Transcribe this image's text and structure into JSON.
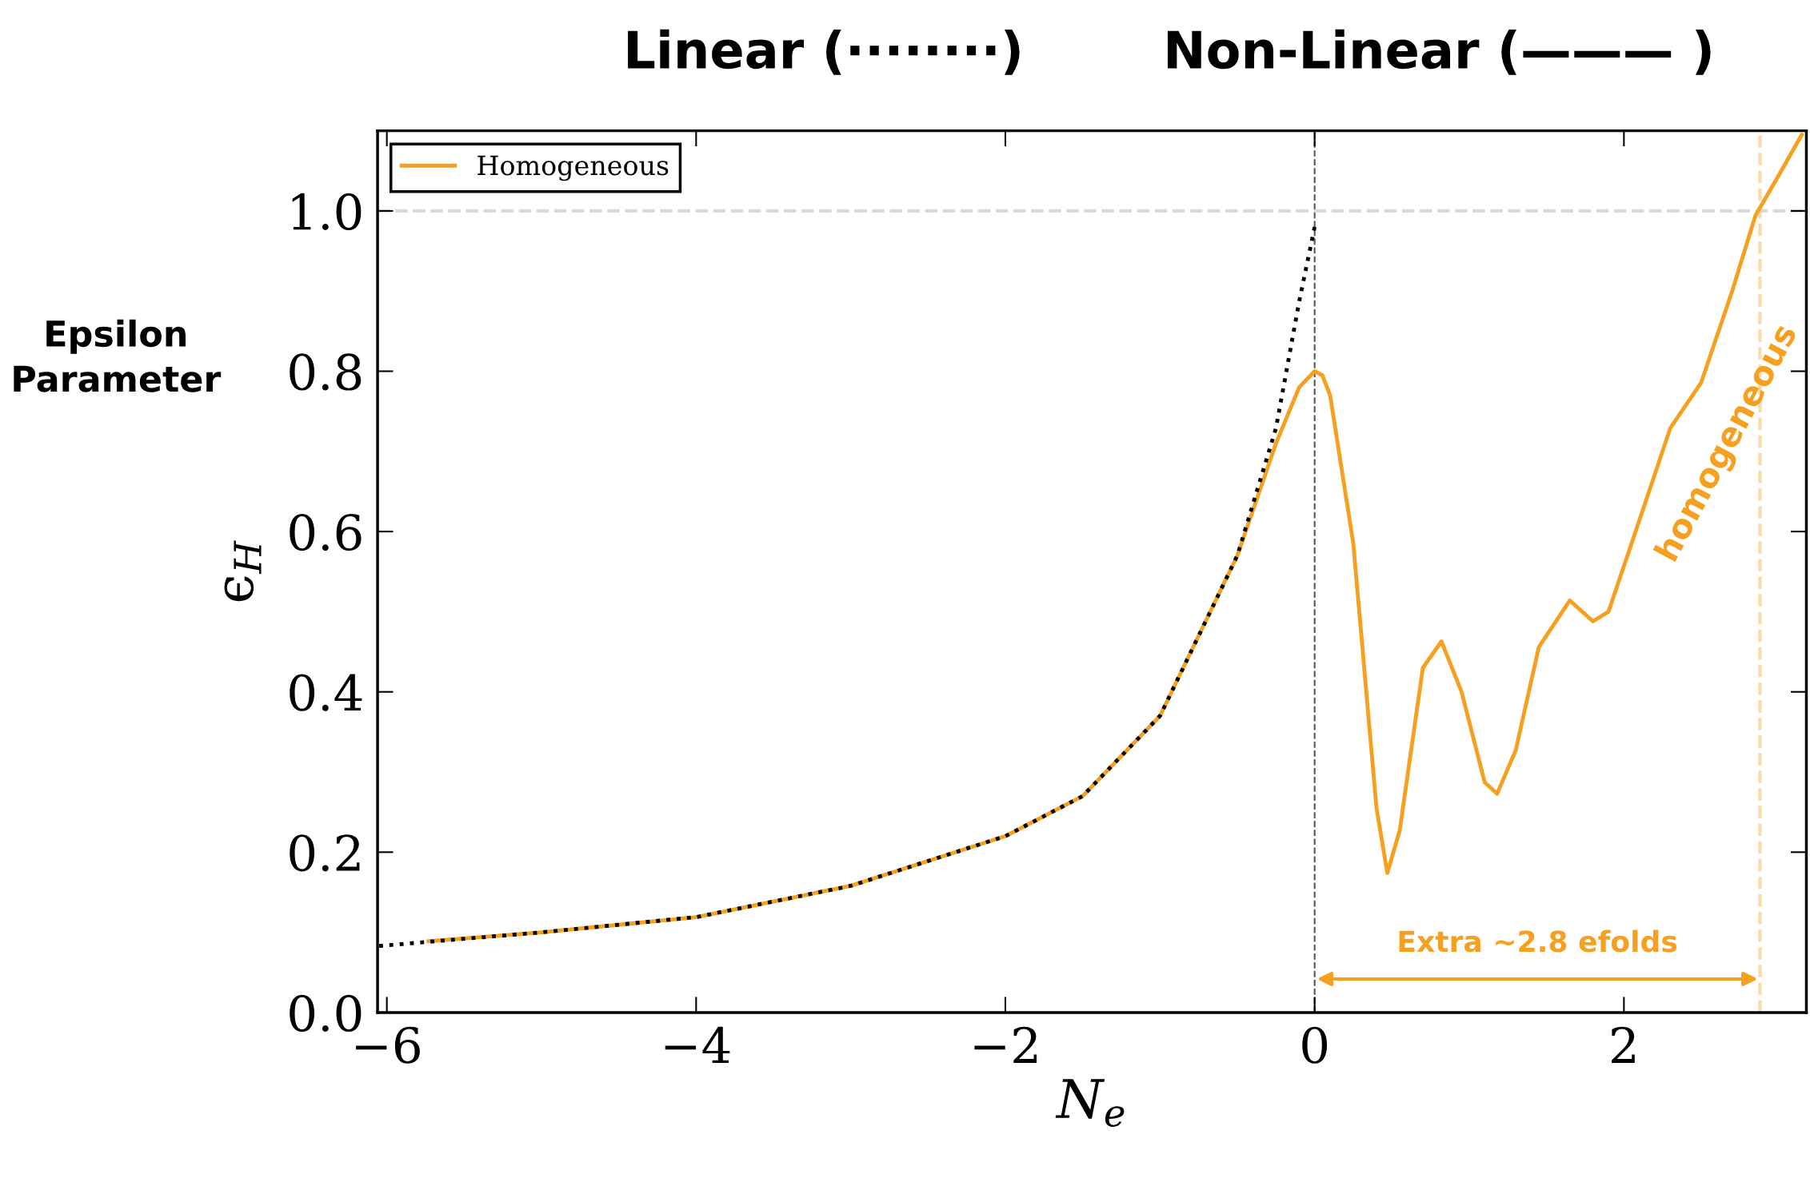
{
  "chart_data": {
    "type": "line",
    "xlabel": "N$_{e}$",
    "ylabel": "ϵ$_{H}$",
    "xlim": [
      -6.06,
      3.18
    ],
    "ylim": [
      0.0,
      1.1
    ],
    "xticks": [
      {
        "value": -6,
        "label": "−6"
      },
      {
        "value": -4,
        "label": "−4"
      },
      {
        "value": -2,
        "label": "−2"
      },
      0,
      2
    ],
    "yticks": [
      {
        "value": 0,
        "label": "0.0"
      },
      0.2,
      0.4,
      0.6,
      0.8,
      {
        "value": 1,
        "label": "1.0"
      }
    ],
    "grid": false,
    "legend": "top left",
    "tick_labels": true,
    "series": [
      {
        "line_style": "dotted",
        "color": "#000000",
        "x": [
          -6.05,
          -5.0,
          -4.0,
          -3.0,
          -2.0,
          -1.5,
          -1.0,
          -0.5,
          -0.25,
          -0.1,
          0.0
        ],
        "values": [
          0.083,
          0.1,
          0.119,
          0.158,
          0.22,
          0.27,
          0.37,
          0.57,
          0.729,
          0.887,
          0.98
        ]
      },
      {
        "line_style": "solid",
        "name": "Homogeneous",
        "color": "#f5a020",
        "x": [
          -5.73,
          -5.0,
          -4.0,
          -3.0,
          -2.0,
          -1.5,
          -1.0,
          -0.5,
          -0.25,
          -0.1,
          0.0,
          0.05,
          0.1,
          0.25,
          0.4,
          0.47,
          0.55,
          0.7,
          0.82,
          0.95,
          1.1,
          1.18,
          1.3,
          1.45,
          1.65,
          1.8,
          1.9,
          2.1,
          2.3,
          2.5,
          2.7,
          2.85,
          3.0,
          3.15
        ],
        "values": [
          0.089,
          0.1,
          0.119,
          0.158,
          0.22,
          0.27,
          0.37,
          0.57,
          0.71,
          0.78,
          0.8,
          0.795,
          0.77,
          0.585,
          0.255,
          0.174,
          0.227,
          0.43,
          0.463,
          0.4,
          0.287,
          0.273,
          0.327,
          0.456,
          0.514,
          0.488,
          0.5,
          0.614,
          0.729,
          0.786,
          0.9,
          0.994,
          1.044,
          1.095
        ]
      }
    ],
    "ref_lines": [
      {
        "axis": "x",
        "value": 0,
        "color": "#555555",
        "line_style": "dashed"
      },
      {
        "axis": "y",
        "value": 1.0,
        "color": "#d9d9d9",
        "line_style": "dashed"
      },
      {
        "axis": "x",
        "value": 2.88,
        "color": "#fbd9a8",
        "line_style": "dashed"
      }
    ],
    "annotations": [
      "Extra ~2.8 efolds",
      "homogeneous",
      "Linear (········)",
      "Non-Linear (——— )",
      "Epsilon\nParameter"
    ]
  }
}
